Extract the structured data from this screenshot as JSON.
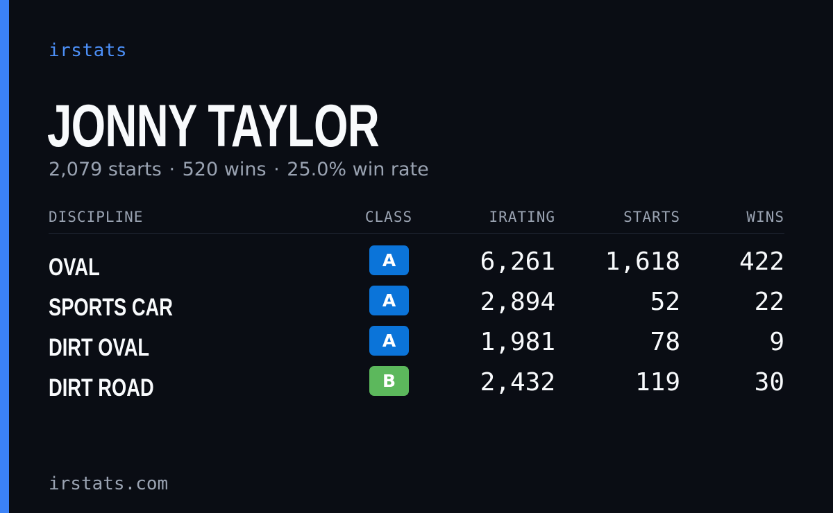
{
  "brand": "irstats",
  "player": {
    "name": "JONNY TAYLOR",
    "summary": {
      "starts": "2,079 starts",
      "wins": "520 wins",
      "win_rate": "25.0% win rate",
      "separator": "·"
    }
  },
  "table": {
    "headers": {
      "discipline": "DISCIPLINE",
      "class": "CLASS",
      "irating": "IRATING",
      "starts": "STARTS",
      "wins": "WINS"
    },
    "rows": [
      {
        "discipline": "OVAL",
        "class": "A",
        "class_color": "#0b74d9",
        "irating": "6,261",
        "starts": "1,618",
        "wins": "422"
      },
      {
        "discipline": "SPORTS CAR",
        "class": "A",
        "class_color": "#0b74d9",
        "irating": "2,894",
        "starts": "52",
        "wins": "22"
      },
      {
        "discipline": "DIRT OVAL",
        "class": "A",
        "class_color": "#0b74d9",
        "irating": "1,981",
        "starts": "78",
        "wins": "9"
      },
      {
        "discipline": "DIRT ROAD",
        "class": "B",
        "class_color": "#5cb85c",
        "irating": "2,432",
        "starts": "119",
        "wins": "30"
      }
    ]
  },
  "footer": {
    "domain": "irstats.com"
  },
  "colors": {
    "background": "#0a0d14",
    "accent": "#3b82f6",
    "brand_text": "#4c8ff7",
    "muted_text": "#9aa3b2",
    "class_a": "#0b74d9",
    "class_b": "#5cb85c"
  }
}
